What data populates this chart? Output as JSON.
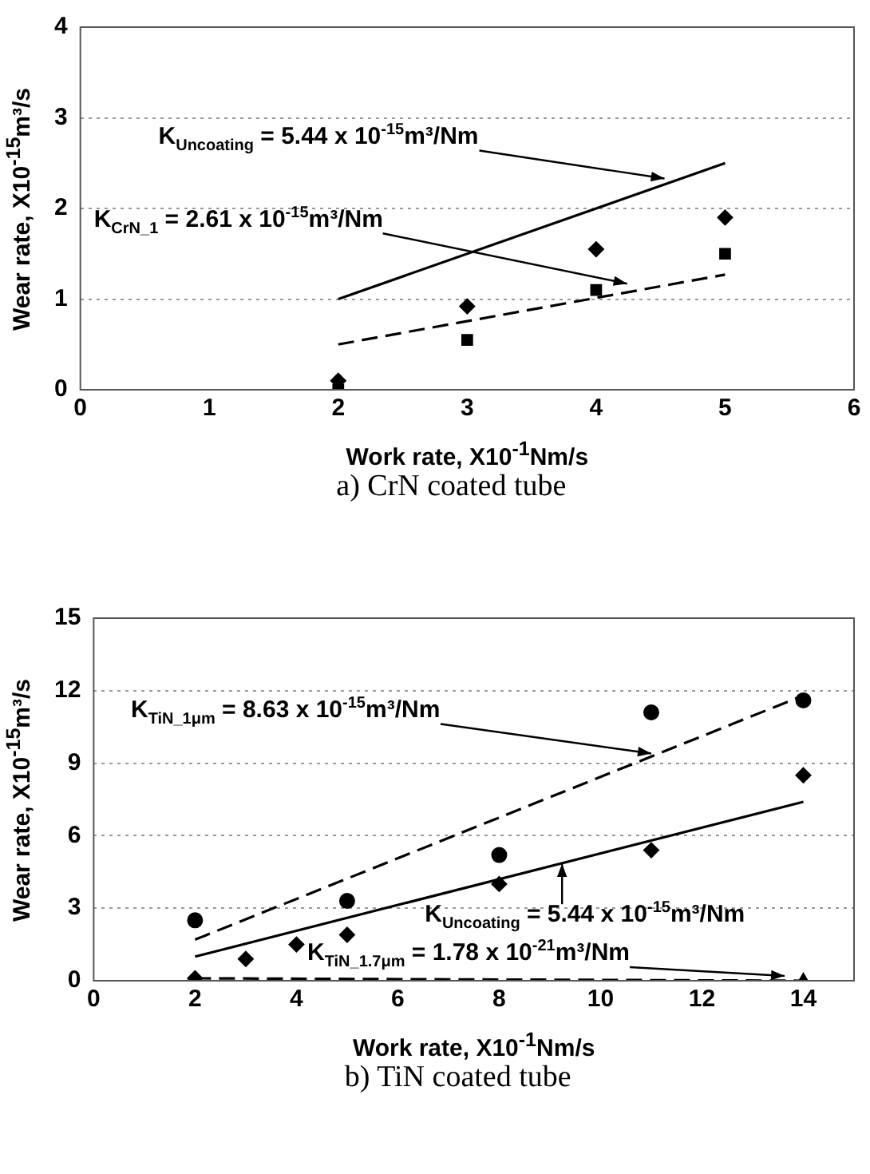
{
  "chart_data": [
    {
      "type": "scatter",
      "title": "a) CrN coated tube",
      "xlabel": "Work rate, X10$^{-1}$Nm/s",
      "ylabel": "Wear rate, X10$^{-15}$m³/s",
      "xlim": [
        0,
        6
      ],
      "xticks": [
        0,
        1,
        2,
        3,
        4,
        5,
        6
      ],
      "ylim": [
        0,
        4
      ],
      "yticks": [
        0,
        1,
        2,
        3,
        4
      ],
      "grid": "y",
      "series": [
        {
          "type": "scatter",
          "marker": "diamond",
          "color": "#000000",
          "x": [
            2,
            3,
            4,
            5
          ],
          "values": [
            0.1,
            0.92,
            1.55,
            1.9
          ]
        },
        {
          "type": "scatter",
          "marker": "square",
          "color": "#000000",
          "x": [
            2,
            3,
            4,
            5
          ],
          "values": [
            0,
            0.55,
            1.1,
            1.5
          ]
        },
        {
          "type": "line",
          "marker": "none",
          "line_style": "solid",
          "color": "#000000",
          "x": [
            2,
            5
          ],
          "values": [
            1.0,
            2.5
          ]
        },
        {
          "type": "line",
          "marker": "none",
          "line_style": "dashed",
          "color": "#000000",
          "x": [
            2,
            5
          ],
          "values": [
            0.5,
            1.27
          ]
        }
      ],
      "annotations": [
        {
          "text": "K$_{Uncoating}$ = 5.44 x 10$^{-15}$m³/Nm",
          "x": 4.53,
          "y": 2.33
        },
        {
          "text": "K$_{CrN_1}$ = 2.61 x 10$^{-15}$m³/Nm",
          "x": 4.24,
          "y": 1.17
        }
      ]
    },
    {
      "type": "scatter",
      "title": "b) TiN coated tube",
      "xlabel": "Work rate, X10$^{-1}$Nm/s",
      "ylabel": "Wear rate, X10$^{-15}$m³/s",
      "xlim": [
        0,
        15
      ],
      "xticks": [
        0,
        2,
        4,
        6,
        8,
        10,
        12,
        14
      ],
      "ylim": [
        0,
        15
      ],
      "yticks": [
        0,
        3,
        6,
        9,
        12,
        15
      ],
      "grid": "y",
      "series": [
        {
          "type": "scatter",
          "marker": "circle",
          "color": "#000000",
          "x": [
            2,
            5,
            8,
            11,
            14
          ],
          "values": [
            2.5,
            3.3,
            5.2,
            11.1,
            11.6
          ]
        },
        {
          "type": "scatter",
          "marker": "diamond",
          "color": "#000000",
          "x": [
            2,
            3,
            4,
            5,
            8,
            11,
            14
          ],
          "values": [
            0.1,
            0.9,
            1.5,
            1.9,
            4.0,
            5.4,
            8.5
          ]
        },
        {
          "type": "scatter",
          "marker": "triangle",
          "color": "#000000",
          "x": [
            14
          ],
          "values": [
            0
          ]
        },
        {
          "type": "line",
          "marker": "none",
          "line_style": "dashed",
          "color": "#000000",
          "x": [
            2,
            14
          ],
          "values": [
            1.7,
            11.8
          ]
        },
        {
          "type": "line",
          "marker": "none",
          "line_style": "solid",
          "color": "#000000",
          "x": [
            2,
            14
          ],
          "values": [
            1.0,
            7.4
          ]
        },
        {
          "type": "line",
          "marker": "none",
          "line_style": "dashed",
          "color": "#000000",
          "x": [
            2,
            14
          ],
          "values": [
            0.1,
            0
          ]
        }
      ],
      "annotations": [
        {
          "text": "K$_{TiN_1μm}$ = 8.63 x 10$^{-15}$m³/Nm",
          "x": 11.0,
          "y": 9.4
        },
        {
          "text": "K$_{Uncoating}$ = 5.44 x 10$^{-15}$m³/Nm",
          "x": 9.24,
          "y": 4.85
        },
        {
          "text": "K$_{TiN_1.7μm}$ = 1.78 x 10$^{-21}$m³/Nm",
          "x": 13.63,
          "y": 0.2
        }
      ]
    }
  ]
}
